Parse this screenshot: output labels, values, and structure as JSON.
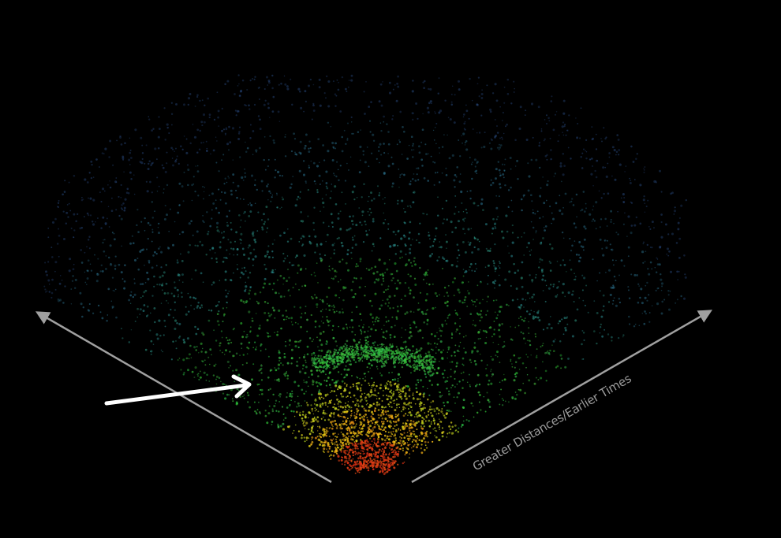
{
  "label": "Greater Distances/Earlier Times"
}
